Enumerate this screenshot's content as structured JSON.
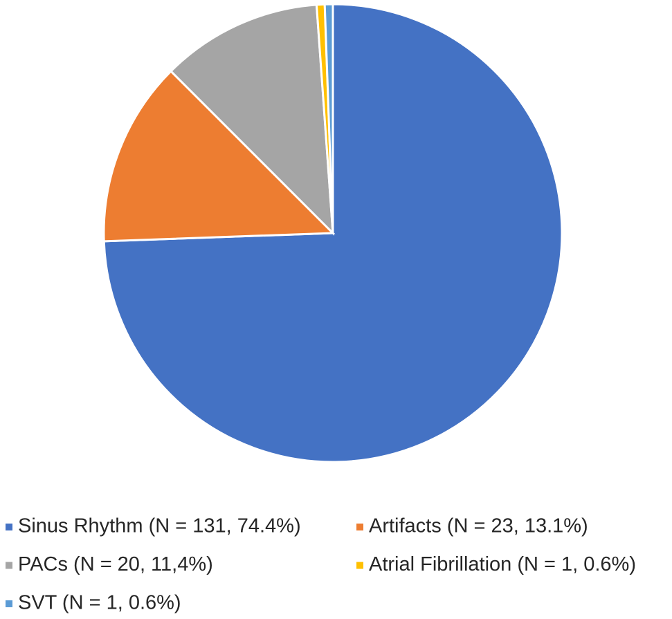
{
  "chart_data": {
    "type": "pie",
    "categories": [
      "Sinus Rhythm (N = 131, 74.4%)",
      "Artifacts (N = 23, 13.1%)",
      "PACs (N = 20, 11,4%)",
      "Atrial Fibrillation (N = 1, 0.6%)",
      "SVT (N = 1, 0.6%)"
    ],
    "values": [
      131,
      23,
      20,
      1,
      1
    ],
    "colors": [
      "#4472c4",
      "#ed7d31",
      "#a5a5a5",
      "#ffc000",
      "#5b9bd5"
    ],
    "legend": "bottom"
  }
}
